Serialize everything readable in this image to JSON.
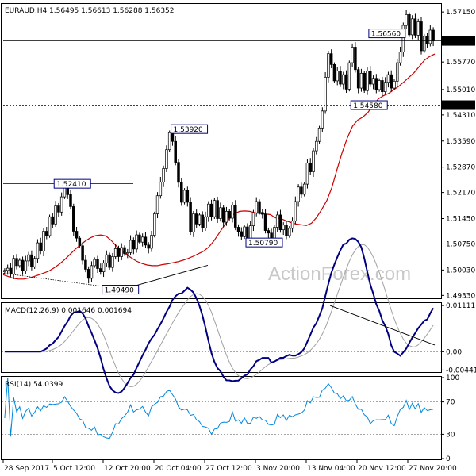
{
  "chart_data": [
    {
      "type": "candlestick",
      "title": "EURAUD,H4  1.56495  1.56613  1.56288  1.56352",
      "ohlc_last": {
        "open": 1.56495,
        "high": 1.56613,
        "low": 1.56288,
        "close": 1.56352
      },
      "y_ticks": [
        "1.57150",
        "1.56352",
        "1.55770",
        "1.55010",
        "1.54580",
        "1.54310",
        "1.53590",
        "1.52870",
        "1.52170",
        "1.51450",
        "1.50750",
        "1.50030",
        "1.49330"
      ],
      "ylim": [
        1.4925,
        1.5735
      ],
      "price_tag": "1.56352",
      "level_tag": "1.54580",
      "annotations": [
        {
          "text": "1.52410",
          "x": 17,
          "y": 1.5241
        },
        {
          "text": "1.53920",
          "x": 56,
          "y": 1.5392
        },
        {
          "text": "1.49490",
          "x": 33,
          "y": 1.4949
        },
        {
          "text": "1.50790",
          "x": 81,
          "y": 1.5079
        },
        {
          "text": "1.56560",
          "x": 122,
          "y": 1.5656
        },
        {
          "text": "1.54580",
          "x": 116,
          "y": 1.5458
        }
      ],
      "closes": [
        1.5002,
        1.5008,
        1.4992,
        1.5035,
        1.5015,
        1.503,
        1.5001,
        1.5028,
        1.5045,
        1.5012,
        1.5035,
        1.5078,
        1.5055,
        1.511,
        1.5098,
        1.515,
        1.513,
        1.518,
        1.5163,
        1.5205,
        1.5235,
        1.5211,
        1.5178,
        1.511,
        1.5091,
        1.507,
        1.503,
        1.5005,
        1.498,
        1.5015,
        1.5032,
        1.5007,
        1.4998,
        1.5022,
        1.5045,
        1.501,
        1.504,
        1.5062,
        1.504,
        1.5065,
        1.5048,
        1.5051,
        1.5085,
        1.5061,
        1.51,
        1.508,
        1.5094,
        1.5072,
        1.5063,
        1.5099,
        1.5158,
        1.5208,
        1.5246,
        1.5283,
        1.5335,
        1.5382,
        1.5358,
        1.53,
        1.5245,
        1.519,
        1.5223,
        1.519,
        1.5108,
        1.5158,
        1.513,
        1.5155,
        1.5119,
        1.515,
        1.5185,
        1.515,
        1.5195,
        1.5145,
        1.5175,
        1.5135,
        1.5165,
        1.5146,
        1.5182,
        1.5121,
        1.5109,
        1.5095,
        1.5122,
        1.509,
        1.5125,
        1.5161,
        1.5192,
        1.5162,
        1.5157,
        1.5112,
        1.5105,
        1.5078,
        1.5121,
        1.5155,
        1.5114,
        1.5127,
        1.5098,
        1.5118,
        1.5138,
        1.5192,
        1.5232,
        1.5212,
        1.524,
        1.5298,
        1.5274,
        1.5332,
        1.5358,
        1.5395,
        1.5442,
        1.5535,
        1.56,
        1.557,
        1.5525,
        1.5552,
        1.5516,
        1.5542,
        1.5502,
        1.5575,
        1.5618,
        1.5556,
        1.5505,
        1.5546,
        1.5498,
        1.5552,
        1.5516,
        1.5532,
        1.5501,
        1.5526,
        1.5495,
        1.5521,
        1.5542,
        1.5505,
        1.5524,
        1.5575,
        1.5605,
        1.5678,
        1.5708,
        1.5652,
        1.5696,
        1.5651,
        1.5688,
        1.5608,
        1.5648,
        1.5628,
        1.5665,
        1.5635
      ],
      "ma_closes": [
        1.499,
        1.4985,
        1.498,
        1.4978,
        1.4978,
        1.4981,
        1.4985,
        1.499,
        1.4995,
        1.5001,
        1.501,
        1.502,
        1.5032,
        1.5046,
        1.506,
        1.5072,
        1.5083,
        1.5092,
        1.5098,
        1.51,
        1.5097,
        1.5085,
        1.507,
        1.5056,
        1.5046,
        1.5036,
        1.5027,
        1.5021,
        1.5017,
        1.5015,
        1.5015,
        1.5018,
        1.502,
        1.5023,
        1.5026,
        1.503,
        1.5035,
        1.5041,
        1.5048,
        1.5055,
        1.5066,
        1.5083,
        1.5104,
        1.5125,
        1.5145,
        1.5158,
        1.5165,
        1.5166,
        1.5165,
        1.5161,
        1.5159,
        1.5158,
        1.5156,
        1.5147,
        1.5145,
        1.5139,
        1.5134,
        1.513,
        1.5128,
        1.5126,
        1.5132,
        1.5148,
        1.517,
        1.5195,
        1.5232,
        1.5282,
        1.5328,
        1.5368,
        1.54,
        1.5417,
        1.5425,
        1.5438,
        1.5458,
        1.5475,
        1.5484,
        1.549,
        1.55,
        1.551,
        1.5522,
        1.5535,
        1.5548,
        1.5565,
        1.5582,
        1.5592,
        1.5599
      ],
      "macd_panel": {
        "label": "MACD(12,26,9) 0.001646 0.001694",
        "ticks": [
          "0.011111",
          "0.00",
          "-0.004419"
        ]
      },
      "rsi_panel": {
        "label": "RSI(14) 54.0399",
        "ticks": [
          "100",
          "70",
          "30",
          "0"
        ]
      },
      "x_ticks": [
        "28 Sep 2017",
        "5 Oct 12:00",
        "12 Oct 20:00",
        "20 Oct 04:00",
        "27 Oct 12:00",
        "3 Nov 20:00",
        "13 Nov 04:00",
        "20 Nov 12:00",
        "27 Nov 20:00"
      ],
      "watermark": "ActionForex.com",
      "colors": {
        "bull": "#ffffff",
        "bear": "#000000",
        "ma": "#cc0000",
        "macd": "#000080",
        "signal": "#a0a0a0",
        "grid": "#c8c8c8"
      }
    }
  ]
}
